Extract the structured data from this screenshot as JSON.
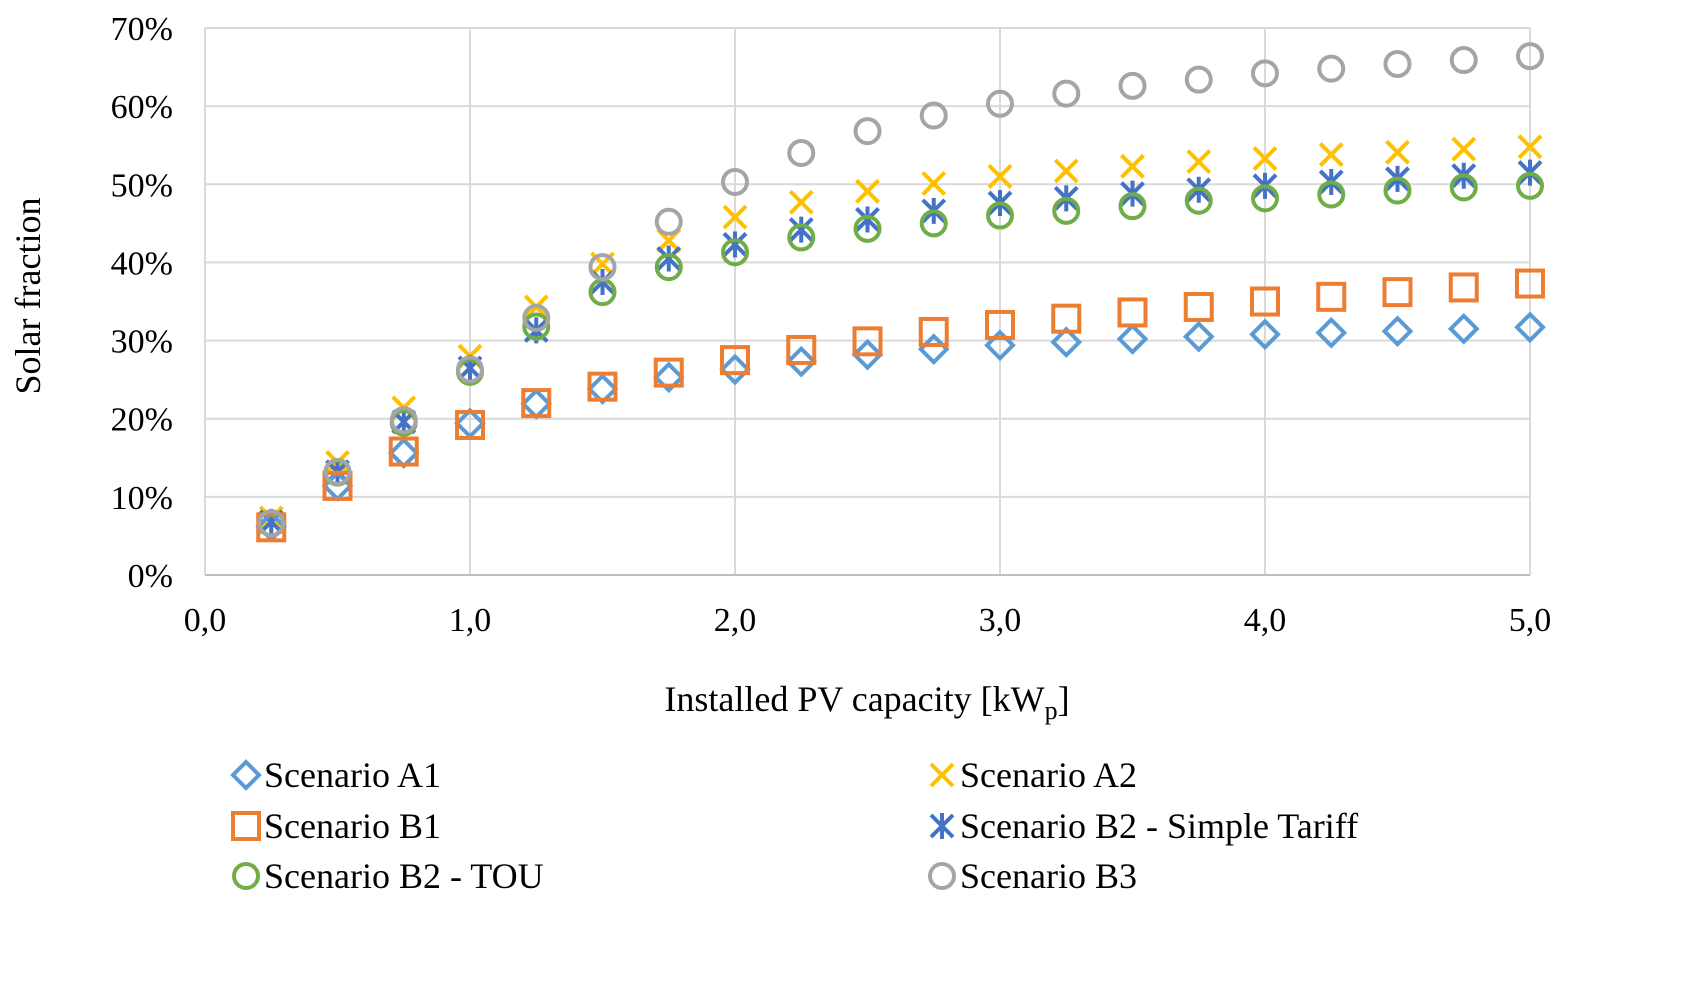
{
  "chart_data": {
    "type": "scatter",
    "xlabel": "Installed PV capacity [kW",
    "xlabel_sub": "p",
    "xlabel_end": "]",
    "ylabel": "Solar fraction",
    "xlim": [
      0,
      5
    ],
    "ylim": [
      0,
      70
    ],
    "x_ticks": [
      0,
      1,
      2,
      3,
      4,
      5
    ],
    "x_tick_labels": [
      "0,0",
      "1,0",
      "2,0",
      "3,0",
      "4,0",
      "5,0"
    ],
    "y_ticks": [
      0,
      10,
      20,
      30,
      40,
      50,
      60,
      70
    ],
    "y_tick_labels": [
      "0%",
      "10%",
      "20%",
      "30%",
      "40%",
      "50%",
      "60%",
      "70%"
    ],
    "grid": true,
    "legend_position": "bottom",
    "x": [
      0.25,
      0.5,
      0.75,
      1.0,
      1.25,
      1.5,
      1.75,
      2.0,
      2.25,
      2.5,
      2.75,
      3.0,
      3.25,
      3.5,
      3.75,
      4.0,
      4.25,
      4.5,
      4.75,
      5.0
    ],
    "series": [
      {
        "name": "Scenario A1",
        "marker": "diamond",
        "color": "#5b9bd5",
        "values": [
          6.2,
          11.4,
          15.6,
          19.4,
          21.9,
          23.8,
          25.3,
          26.3,
          27.3,
          28.2,
          28.9,
          29.4,
          29.8,
          30.2,
          30.5,
          30.8,
          31.0,
          31.2,
          31.5,
          31.7
        ]
      },
      {
        "name": "Scenario A2",
        "marker": "x",
        "color": "#ffc000",
        "values": [
          7.3,
          14.4,
          21.4,
          28.0,
          34.3,
          39.8,
          42.8,
          45.8,
          47.7,
          49.1,
          50.1,
          51.0,
          51.7,
          52.3,
          52.9,
          53.3,
          53.8,
          54.1,
          54.5,
          54.8
        ]
      },
      {
        "name": "Scenario B1",
        "marker": "square",
        "color": "#ed7d31",
        "values": [
          6.1,
          11.4,
          15.8,
          19.2,
          22.0,
          24.1,
          25.9,
          27.5,
          28.8,
          29.9,
          31.1,
          32.0,
          32.8,
          33.6,
          34.3,
          35.0,
          35.6,
          36.2,
          36.8,
          37.3
        ]
      },
      {
        "name": "Scenario B2 - Simple Tariff",
        "marker": "asterisk",
        "color": "#4472c4",
        "values": [
          6.8,
          13.2,
          19.6,
          26.5,
          31.3,
          37.5,
          40.5,
          42.3,
          44.2,
          45.5,
          46.6,
          47.6,
          48.2,
          48.8,
          49.3,
          49.8,
          50.3,
          50.7,
          51.1,
          51.5
        ]
      },
      {
        "name": "Scenario B2 - TOU",
        "marker": "circle",
        "color": "#70ad47",
        "values": [
          6.6,
          13.1,
          19.5,
          26.0,
          31.8,
          36.2,
          39.4,
          41.3,
          43.2,
          44.3,
          45.0,
          46.0,
          46.6,
          47.2,
          47.9,
          48.2,
          48.7,
          49.2,
          49.6,
          49.8
        ]
      },
      {
        "name": "Scenario B3",
        "marker": "circle",
        "color": "#a5a5a5",
        "values": [
          6.6,
          13.2,
          19.8,
          26.3,
          32.9,
          39.4,
          45.2,
          50.3,
          54.0,
          56.8,
          58.8,
          60.3,
          61.6,
          62.6,
          63.4,
          64.2,
          64.8,
          65.4,
          65.9,
          66.4
        ]
      }
    ]
  }
}
